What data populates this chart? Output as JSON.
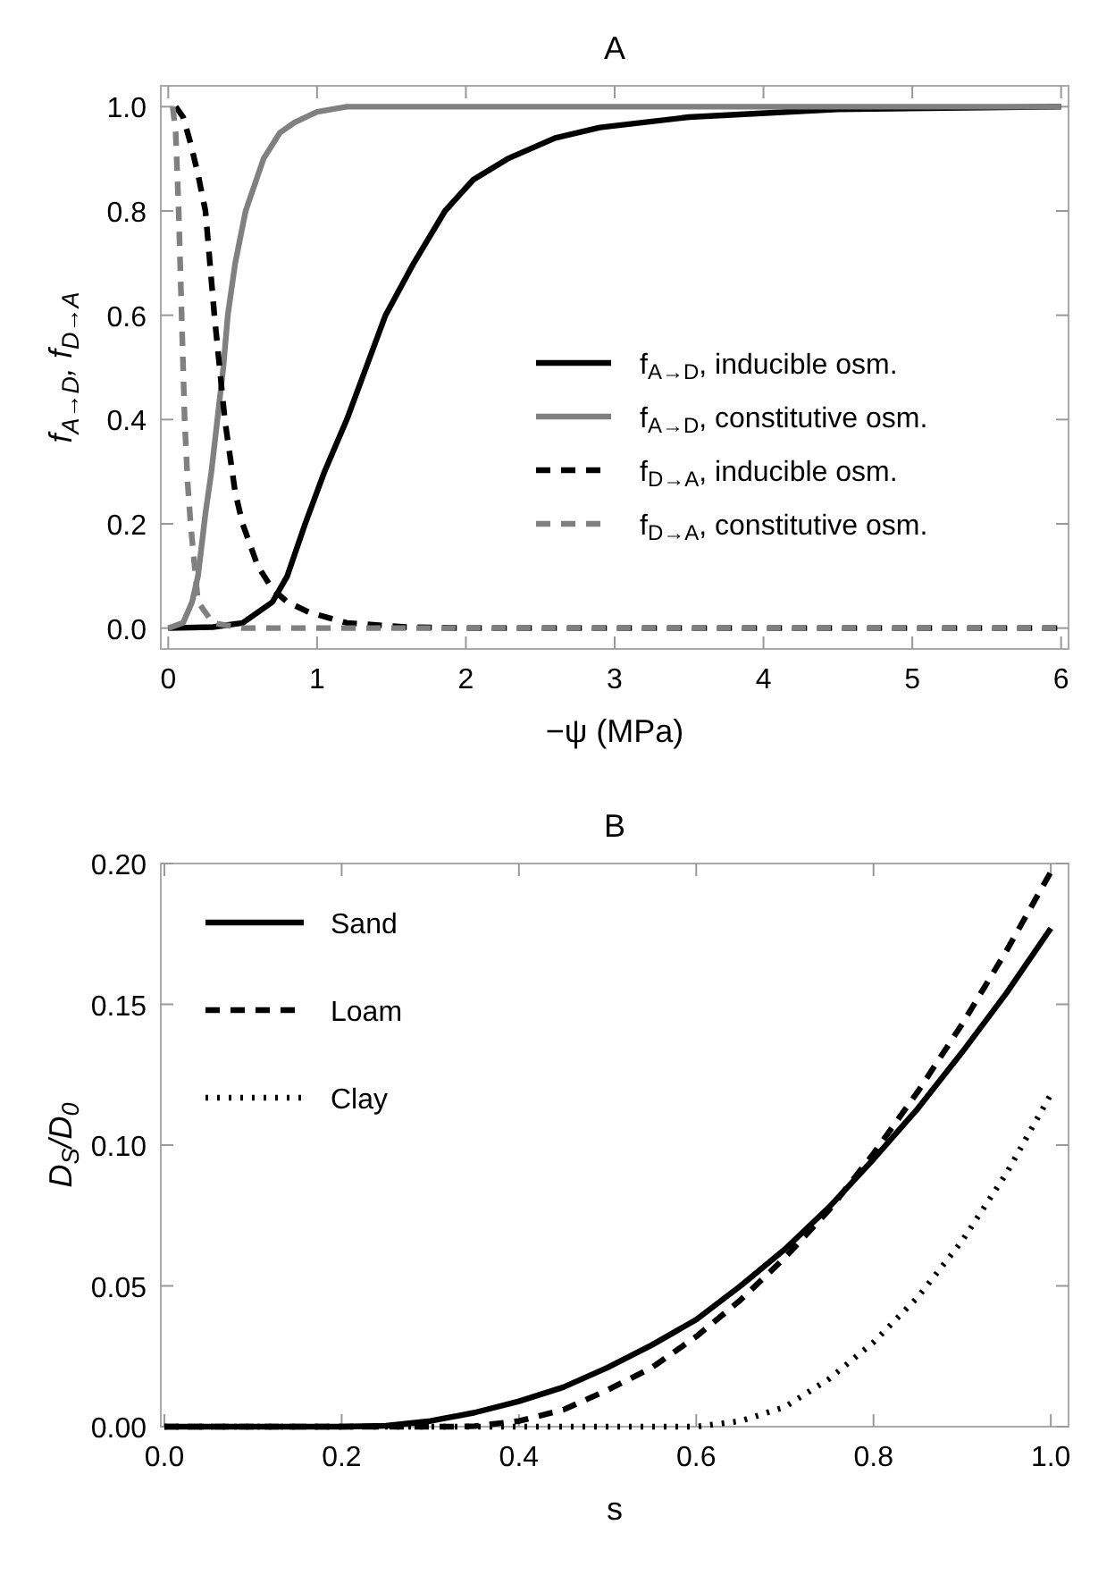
{
  "chart_data": [
    {
      "type": "line",
      "title": "A",
      "xlabel": "−ψ (MPa)",
      "ylabel": "f$_{A→D}$, f$_{D→A}$",
      "xlim": [
        -0.05,
        6.05
      ],
      "ylim": [
        -0.04,
        1.04
      ],
      "xticks": [
        0,
        1,
        2,
        3,
        4,
        5,
        6
      ],
      "yticks": [
        {
          "value": 0,
          "label": "0.0"
        },
        {
          "value": 0.2,
          "label": "0.2"
        },
        {
          "value": 0.4,
          "label": "0.4"
        },
        {
          "value": 0.6,
          "label": "0.6"
        },
        {
          "value": 0.8,
          "label": "0.8"
        },
        {
          "value": 1,
          "label": "1.0"
        }
      ],
      "grid": false,
      "legend": "right",
      "series": [
        {
          "name": "f$_{A→D}$, inducible osm.",
          "color": "#000000",
          "line_style": "solid",
          "x": [
            0,
            0.3,
            0.5,
            0.7,
            0.8,
            0.92,
            1.05,
            1.2,
            1.33,
            1.46,
            1.65,
            1.86,
            2.05,
            2.28,
            2.6,
            2.9,
            3.5,
            4.5,
            6
          ],
          "values": [
            0,
            0.002,
            0.01,
            0.05,
            0.1,
            0.2,
            0.3,
            0.4,
            0.5,
            0.6,
            0.7,
            0.8,
            0.86,
            0.9,
            0.94,
            0.96,
            0.98,
            0.995,
            1
          ]
        },
        {
          "name": "f$_{A→D}$, constitutive osm.",
          "color": "#808080",
          "line_style": "solid",
          "x": [
            0,
            0.1,
            0.16,
            0.2,
            0.25,
            0.29,
            0.33,
            0.37,
            0.4,
            0.45,
            0.52,
            0.64,
            0.75,
            0.85,
            1,
            1.2,
            2,
            6
          ],
          "values": [
            0,
            0.01,
            0.05,
            0.1,
            0.22,
            0.3,
            0.4,
            0.5,
            0.6,
            0.7,
            0.8,
            0.9,
            0.95,
            0.97,
            0.99,
            1,
            1,
            1
          ]
        },
        {
          "name": "f$_{D→A}$, inducible osm.",
          "color": "#000000",
          "line_style": "dashed",
          "x": [
            0.05,
            0.1,
            0.15,
            0.2,
            0.25,
            0.31,
            0.38,
            0.45,
            0.5,
            0.6,
            0.7,
            0.8,
            0.95,
            1.2,
            1.6,
            2,
            6
          ],
          "values": [
            1,
            0.98,
            0.93,
            0.87,
            0.8,
            0.6,
            0.4,
            0.26,
            0.2,
            0.12,
            0.075,
            0.05,
            0.03,
            0.01,
            0.002,
            0,
            0
          ]
        },
        {
          "name": "f$_{D→A}$, constitutive osm.",
          "color": "#808080",
          "line_style": "dashed",
          "x": [
            0.03,
            0.05,
            0.07,
            0.09,
            0.11,
            0.13,
            0.15,
            0.2,
            0.3,
            0.5,
            6
          ],
          "values": [
            1,
            0.95,
            0.8,
            0.6,
            0.4,
            0.28,
            0.2,
            0.05,
            0.01,
            0,
            0
          ]
        }
      ]
    },
    {
      "type": "line",
      "title": "B",
      "xlabel": "s",
      "ylabel": "D$_{S}$/D$_{0}$",
      "xlim": [
        -0.004,
        1.02
      ],
      "ylim": [
        0,
        0.2
      ],
      "xticks": [
        {
          "value": 0,
          "label": "0.0"
        },
        {
          "value": 0.2,
          "label": "0.2"
        },
        {
          "value": 0.4,
          "label": "0.4"
        },
        {
          "value": 0.6,
          "label": "0.6"
        },
        {
          "value": 0.8,
          "label": "0.8"
        },
        {
          "value": 1,
          "label": "1.0"
        }
      ],
      "yticks": [
        {
          "value": 0,
          "label": "0.00"
        },
        {
          "value": 0.05,
          "label": "0.05"
        },
        {
          "value": 0.1,
          "label": "0.10"
        },
        {
          "value": 0.15,
          "label": "0.15"
        },
        {
          "value": 0.2,
          "label": "0.20"
        }
      ],
      "grid": false,
      "legend": "top left",
      "series": [
        {
          "name": "Sand",
          "color": "#000000",
          "line_style": "solid",
          "x": [
            0,
            0.1,
            0.2,
            0.25,
            0.3,
            0.35,
            0.4,
            0.45,
            0.5,
            0.55,
            0.6,
            0.65,
            0.7,
            0.75,
            0.8,
            0.85,
            0.9,
            0.95,
            1
          ],
          "values": [
            0,
            0,
            0,
            0.0003,
            0.002,
            0.005,
            0.009,
            0.014,
            0.021,
            0.029,
            0.038,
            0.05,
            0.063,
            0.078,
            0.095,
            0.113,
            0.133,
            0.154,
            0.177
          ]
        },
        {
          "name": "Loam",
          "color": "#000000",
          "line_style": "dashed",
          "x": [
            0,
            0.2,
            0.33,
            0.35,
            0.4,
            0.45,
            0.5,
            0.55,
            0.6,
            0.65,
            0.7,
            0.75,
            0.8,
            0.85,
            0.9,
            0.95,
            1
          ],
          "values": [
            0,
            0,
            0,
            0.0002,
            0.002,
            0.006,
            0.013,
            0.021,
            0.032,
            0.045,
            0.06,
            0.077,
            0.097,
            0.119,
            0.143,
            0.169,
            0.197
          ]
        },
        {
          "name": "Clay",
          "color": "#000000",
          "line_style": "dotted",
          "x": [
            0,
            0.3,
            0.6,
            0.65,
            0.7,
            0.75,
            0.8,
            0.85,
            0.9,
            0.95,
            1
          ],
          "values": [
            0,
            0,
            0,
            0.002,
            0.007,
            0.017,
            0.03,
            0.046,
            0.066,
            0.09,
            0.118
          ]
        }
      ]
    }
  ]
}
